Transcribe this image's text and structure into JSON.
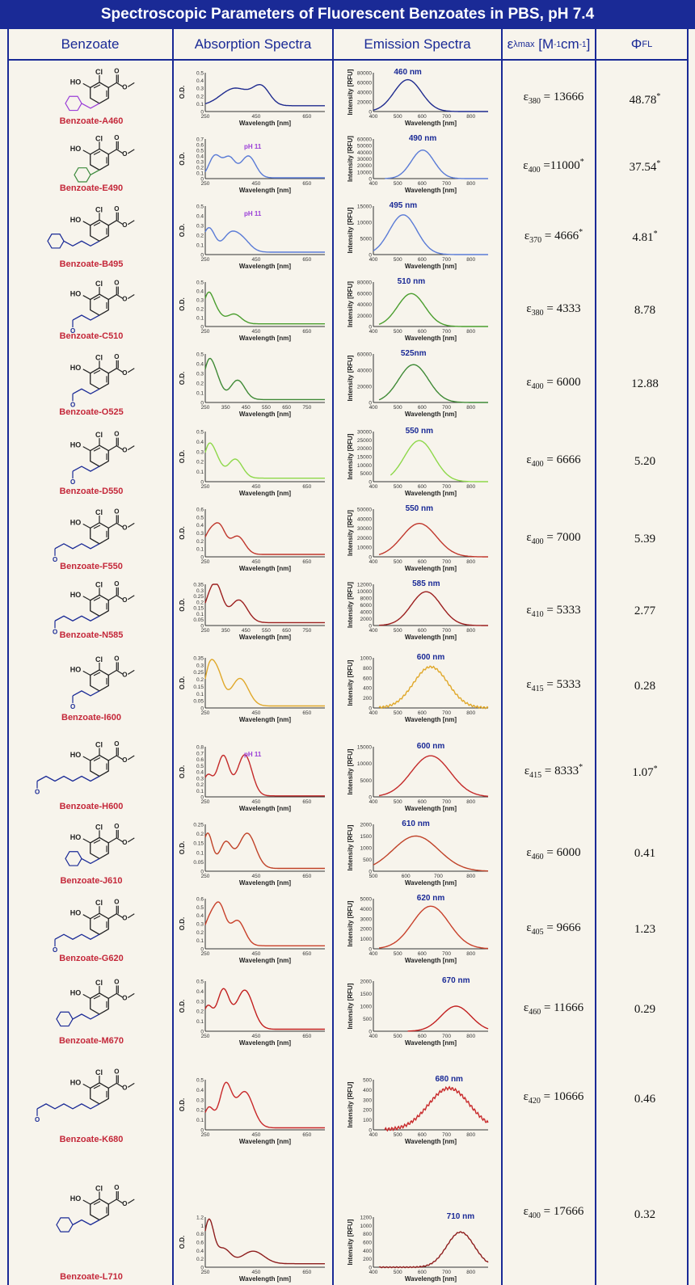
{
  "title": "Spectroscopic Parameters of Fluorescent Benzoates in PBS, pH 7.4",
  "headers": {
    "benzoate": "Benzoate",
    "absorption": "Absorption Spectra",
    "emission": "Emission Spectra",
    "epsilon_sym": "ε",
    "epsilon_sub": "λmax",
    "epsilon_unit": "[M",
    "epsilon_exp1": "-1",
    "epsilon_cm": "cm",
    "epsilon_exp2": "-1",
    "epsilon_close": "]",
    "phi_sym": "Φ",
    "phi_sub": "FL"
  },
  "axis_labels": {
    "od": "O.D.",
    "intensity": "Intensity [RFU]",
    "wavelength": "Wavelength [nm]"
  },
  "colors": {
    "header": "#1a2a96",
    "name": "#c4283a",
    "struct": "#222222",
    "grid_axis": "#333333"
  },
  "compounds": [
    {
      "name": "Benzoate-A460",
      "eps_sub": "380",
      "eps_val": "= 13666",
      "eps_star": false,
      "qy": "48.78",
      "qy_star": true,
      "color": "#1f2b8f",
      "emission_label": "460 nm",
      "abs_note": "",
      "chain": "coumarin",
      "chain_color": "#9b3fd8",
      "abs": {
        "ticks_x": [
          "250",
          "450",
          "650"
        ],
        "ticks_y": [
          "0.5",
          "0.4",
          "0.3",
          "0.2",
          "0.1",
          "0"
        ],
        "peaks": [
          [
            0.25,
            0.45,
            0.12
          ],
          [
            0.47,
            0.45,
            0.07
          ]
        ],
        "base": 0.15
      },
      "em": {
        "ticks_x": [
          "400",
          "500",
          "600",
          "700",
          "800"
        ],
        "ticks_y": [
          "80000",
          "60000",
          "40000",
          "20000",
          "0"
        ],
        "peak": 0.3,
        "width": 0.12,
        "h": 0.82,
        "noise": 0,
        "start": 0
      }
    },
    {
      "name": "Benzoate-E490",
      "eps_sub": "400",
      "eps_val": "=11000",
      "eps_star": true,
      "qy": "37.54",
      "qy_star": true,
      "color": "#5a7bd6",
      "emission_label": "490 nm",
      "abs_note": "pH 11",
      "chain": "benzothiazole",
      "chain_color": "#3d8a3d",
      "abs": {
        "ticks_x": [
          "250",
          "450",
          "650"
        ],
        "ticks_y": [
          "0.7",
          "0.6",
          "0.5",
          "0.4",
          "0.3",
          "0.2",
          "0.1",
          "0"
        ],
        "peaks": [
          [
            0.08,
            0.55,
            0.05
          ],
          [
            0.2,
            0.5,
            0.05
          ],
          [
            0.36,
            0.55,
            0.06
          ]
        ],
        "base": 0.02
      },
      "em": {
        "ticks_x": [
          "400",
          "500",
          "600",
          "700",
          "800"
        ],
        "ticks_y": [
          "60000",
          "50000",
          "40000",
          "30000",
          "20000",
          "10000",
          "0"
        ],
        "peak": 0.43,
        "width": 0.1,
        "h": 0.72,
        "noise": 0,
        "start": 0.1
      }
    },
    {
      "name": "Benzoate-B495",
      "eps_sub": "370",
      "eps_val": "= 4666",
      "eps_star": true,
      "qy": "4.81",
      "qy_star": true,
      "color": "#5a7bd6",
      "emission_label": "495 nm",
      "abs_note": "pH 11",
      "chain": "oxyacetic",
      "chain_color": "#1a2a96",
      "abs": {
        "ticks_x": [
          "250",
          "450",
          "650"
        ],
        "ticks_y": [
          "0.5",
          "0.4",
          "0.3",
          "0.2",
          "0.1",
          "0"
        ],
        "peaks": [
          [
            0.03,
            0.5,
            0.05
          ],
          [
            0.2,
            0.3,
            0.06
          ],
          [
            0.3,
            0.28,
            0.07
          ]
        ],
        "base": 0.05
      },
      "em": {
        "ticks_x": [
          "400",
          "500",
          "600",
          "700",
          "800"
        ],
        "ticks_y": [
          "15000",
          "10000",
          "5000",
          "0"
        ],
        "peak": 0.26,
        "width": 0.12,
        "h": 0.82,
        "noise": 0,
        "start": 0
      }
    },
    {
      "name": "Benzoate-C510",
      "eps_sub": "380",
      "eps_val": "= 4333",
      "eps_star": false,
      "qy": "8.78",
      "qy_star": false,
      "color": "#4a9e2e",
      "emission_label": "510 nm",
      "abs_note": "",
      "chain": "acrylic",
      "chain_color": "#1a2a96",
      "abs": {
        "ticks_x": [
          "250",
          "450",
          "650"
        ],
        "ticks_y": [
          "0.5",
          "0.4",
          "0.3",
          "0.2",
          "0.1",
          "0"
        ],
        "peaks": [
          [
            0.02,
            0.55,
            0.04
          ],
          [
            0.08,
            0.3,
            0.05
          ],
          [
            0.24,
            0.22,
            0.06
          ]
        ],
        "base": 0.06
      },
      "em": {
        "ticks_x": [
          "400",
          "500",
          "600",
          "700",
          "800"
        ],
        "ticks_y": [
          "80000",
          "60000",
          "40000",
          "20000",
          "0"
        ],
        "peak": 0.33,
        "width": 0.12,
        "h": 0.74,
        "noise": 0,
        "start": 0.05
      }
    },
    {
      "name": "Benzoate-O525",
      "eps_sub": "400",
      "eps_val": "= 6000",
      "eps_star": false,
      "qy": "12.88",
      "qy_star": false,
      "color": "#3f8a36",
      "emission_label": "525nm",
      "abs_note": "",
      "chain": "acrylonitrile",
      "chain_color": "#1a2a96",
      "abs": {
        "ticks_x": [
          "250",
          "350",
          "450",
          "550",
          "650",
          "750"
        ],
        "ticks_y": [
          "0.5",
          "0.4",
          "0.3",
          "0.2",
          "0.1",
          "0"
        ],
        "peaks": [
          [
            0.02,
            0.55,
            0.04
          ],
          [
            0.08,
            0.5,
            0.05
          ],
          [
            0.27,
            0.4,
            0.06
          ]
        ],
        "base": 0.06
      },
      "em": {
        "ticks_x": [
          "400",
          "500",
          "600",
          "700",
          "800"
        ],
        "ticks_y": [
          "60000",
          "40000",
          "20000",
          "0"
        ],
        "peak": 0.35,
        "width": 0.13,
        "h": 0.78,
        "noise": 0,
        "start": 0.05
      }
    },
    {
      "name": "Benzoate-D550",
      "eps_sub": "400",
      "eps_val": "= 6666",
      "eps_star": false,
      "qy": "5.20",
      "qy_star": false,
      "color": "#8ed84a",
      "emission_label": "550 nm",
      "abs_note": "",
      "chain": "methylacrylate",
      "chain_color": "#1a2a96",
      "abs": {
        "ticks_x": [
          "250",
          "450",
          "650"
        ],
        "ticks_y": [
          "0.5",
          "0.4",
          "0.3",
          "0.2",
          "0.1",
          "0"
        ],
        "peaks": [
          [
            0.02,
            0.45,
            0.04
          ],
          [
            0.08,
            0.42,
            0.05
          ],
          [
            0.25,
            0.38,
            0.06
          ]
        ],
        "base": 0.07
      },
      "em": {
        "ticks_x": [
          "400",
          "500",
          "600",
          "700",
          "800"
        ],
        "ticks_y": [
          "30000",
          "25000",
          "20000",
          "15000",
          "10000",
          "5000",
          "0"
        ],
        "peak": 0.4,
        "width": 0.13,
        "h": 0.82,
        "noise": 0,
        "start": 0.15
      }
    },
    {
      "name": "Benzoate-F550",
      "eps_sub": "400",
      "eps_val": "= 7000",
      "eps_star": false,
      "qy": "5.39",
      "qy_star": false,
      "color": "#c0372c",
      "emission_label": "550 nm",
      "abs_note": "",
      "chain": "dienoic",
      "chain_color": "#1a2a96",
      "abs": {
        "ticks_x": [
          "250",
          "450",
          "650"
        ],
        "ticks_y": [
          "0.6",
          "0.5",
          "0.4",
          "0.3",
          "0.2",
          "0.1",
          "0"
        ],
        "peaks": [
          [
            0.03,
            0.4,
            0.05
          ],
          [
            0.12,
            0.55,
            0.05
          ],
          [
            0.27,
            0.38,
            0.06
          ]
        ],
        "base": 0.05
      },
      "em": {
        "ticks_x": [
          "400",
          "500",
          "600",
          "700",
          "800"
        ],
        "ticks_y": [
          "50000",
          "40000",
          "30000",
          "20000",
          "10000",
          "0"
        ],
        "peak": 0.4,
        "width": 0.15,
        "h": 0.7,
        "noise": 0,
        "start": 0.05
      }
    },
    {
      "name": "Benzoate-N585",
      "eps_sub": "410",
      "eps_val": "= 5333",
      "eps_star": false,
      "qy": "2.77",
      "qy_star": false,
      "color": "#9c1f1f",
      "emission_label": "585 nm",
      "abs_note": "",
      "chain": "dienenitrile",
      "chain_color": "#1a2a96",
      "abs": {
        "ticks_x": [
          "250",
          "350",
          "450",
          "550",
          "650",
          "750"
        ],
        "ticks_y": [
          "0.35",
          "0.3",
          "0.25",
          "0.2",
          "0.15",
          "0.1",
          "0.05",
          "0"
        ],
        "peaks": [
          [
            0.03,
            0.45,
            0.05
          ],
          [
            0.1,
            0.75,
            0.05
          ],
          [
            0.28,
            0.55,
            0.07
          ]
        ],
        "base": 0.07
      },
      "em": {
        "ticks_x": [
          "400",
          "500",
          "600",
          "700",
          "800"
        ],
        "ticks_y": [
          "12000",
          "10000",
          "8000",
          "6000",
          "4000",
          "2000",
          "0"
        ],
        "peak": 0.46,
        "width": 0.13,
        "h": 0.82,
        "noise": 0,
        "start": 0.05
      }
    },
    {
      "name": "Benzoate-I600",
      "eps_sub": "415",
      "eps_val": "= 5333",
      "eps_star": false,
      "qy": "0.28",
      "qy_star": false,
      "color": "#e0a82a",
      "emission_label": "600 nm",
      "abs_note": "",
      "chain": "butenone",
      "chain_color": "#1a2a96",
      "abs": {
        "ticks_x": [
          "250",
          "450",
          "650"
        ],
        "ticks_y": [
          "0.35",
          "0.3",
          "0.25",
          "0.2",
          "0.15",
          "0.1",
          "0.05",
          "0"
        ],
        "peaks": [
          [
            0.03,
            0.6,
            0.04
          ],
          [
            0.1,
            0.65,
            0.05
          ],
          [
            0.29,
            0.55,
            0.07
          ]
        ],
        "base": 0.04
      },
      "em": {
        "ticks_x": [
          "400",
          "500",
          "600",
          "700",
          "800"
        ],
        "ticks_y": [
          "1000",
          "800",
          "600",
          "400",
          "200",
          "0"
        ],
        "peak": 0.5,
        "width": 0.15,
        "h": 0.82,
        "noise": 0.02,
        "start": 0.05
      }
    },
    {
      "name": "Benzoate-H600",
      "eps_sub": "415",
      "eps_val": "= 8333",
      "eps_star": true,
      "qy": "1.07",
      "qy_star": true,
      "color": "#c42a2a",
      "emission_label": "600 nm",
      "abs_note": "pH 11",
      "chain": "trienoic",
      "chain_color": "#1a2a96",
      "abs": {
        "ticks_x": [
          "250",
          "450",
          "650"
        ],
        "ticks_y": [
          "0.8",
          "0.7",
          "0.6",
          "0.5",
          "0.4",
          "0.3",
          "0.2",
          "0.1",
          "0"
        ],
        "peaks": [
          [
            0.02,
            0.4,
            0.04
          ],
          [
            0.15,
            0.8,
            0.05
          ],
          [
            0.33,
            0.82,
            0.06
          ]
        ],
        "base": 0.02
      },
      "em": {
        "ticks_x": [
          "400",
          "500",
          "600",
          "700",
          "800"
        ],
        "ticks_y": [
          "15000",
          "10000",
          "5000",
          "0"
        ],
        "peak": 0.5,
        "width": 0.17,
        "h": 0.82,
        "noise": 0,
        "start": 0.05
      }
    },
    {
      "name": "Benzoate-J610",
      "eps_sub": "460",
      "eps_val": "= 6000",
      "eps_star": false,
      "qy": "0.41",
      "qy_star": false,
      "color": "#c04228",
      "emission_label": "610 nm",
      "abs_note": "",
      "chain": "imidazolone",
      "chain_color": "#1a2a96",
      "abs": {
        "ticks_x": [
          "250",
          "450",
          "650"
        ],
        "ticks_y": [
          "0.25",
          "0.2",
          "0.15",
          "0.1",
          "0.05",
          "0"
        ],
        "peaks": [
          [
            0.02,
            0.75,
            0.04
          ],
          [
            0.17,
            0.55,
            0.05
          ],
          [
            0.35,
            0.75,
            0.07
          ]
        ],
        "base": 0.06
      },
      "em": {
        "ticks_x": [
          "500",
          "600",
          "700",
          "800"
        ],
        "ticks_y": [
          "2000",
          "1500",
          "1000",
          "500",
          "0"
        ],
        "peak": 0.37,
        "width": 0.2,
        "h": 0.75,
        "noise": 0,
        "start": 0
      }
    },
    {
      "name": "Benzoate-G620",
      "eps_sub": "405",
      "eps_val": "= 9666",
      "eps_star": false,
      "qy": "1.23",
      "qy_star": false,
      "color": "#c8402a",
      "emission_label": "620 nm",
      "abs_note": "",
      "chain": "dienoate",
      "chain_color": "#1a2a96",
      "abs": {
        "ticks_x": [
          "250",
          "450",
          "650"
        ],
        "ticks_y": [
          "0.6",
          "0.5",
          "0.4",
          "0.3",
          "0.2",
          "0.1",
          "0"
        ],
        "peaks": [
          [
            0.03,
            0.45,
            0.05
          ],
          [
            0.12,
            0.75,
            0.05
          ],
          [
            0.27,
            0.5,
            0.06
          ]
        ],
        "base": 0.06
      },
      "em": {
        "ticks_x": [
          "400",
          "500",
          "600",
          "700",
          "800"
        ],
        "ticks_y": [
          "5000",
          "4000",
          "3000",
          "2000",
          "1000",
          "0"
        ],
        "peak": 0.5,
        "width": 0.16,
        "h": 0.85,
        "noise": 0,
        "start": 0.05
      }
    },
    {
      "name": "Benzoate-M670",
      "eps_sub": "460",
      "eps_val": "= 11666",
      "eps_star": false,
      "qy": "0.29",
      "qy_star": false,
      "color": "#c21f1f",
      "emission_label": "670 nm",
      "abs_note": "",
      "chain": "pyridinium",
      "chain_color": "#1a2a96",
      "abs": {
        "ticks_x": [
          "250",
          "450",
          "650"
        ],
        "ticks_y": [
          "0.5",
          "0.4",
          "0.3",
          "0.2",
          "0.1",
          "0"
        ],
        "peaks": [
          [
            0.02,
            0.45,
            0.04
          ],
          [
            0.15,
            0.78,
            0.05
          ],
          [
            0.33,
            0.78,
            0.07
          ]
        ],
        "base": 0.04
      },
      "em": {
        "ticks_x": [
          "400",
          "500",
          "600",
          "700",
          "800"
        ],
        "ticks_y": [
          "2000",
          "1500",
          "1000",
          "500",
          "0"
        ],
        "peak": 0.72,
        "width": 0.13,
        "h": 0.5,
        "noise": 0,
        "start": 0.3
      }
    },
    {
      "name": "Benzoate-K680",
      "eps_sub": "420",
      "eps_val": "= 10666",
      "eps_star": false,
      "qy": "0.46",
      "qy_star": false,
      "color": "#c8282a",
      "emission_label": "680 nm",
      "abs_note": "",
      "chain": "trienoate",
      "chain_color": "#1a2a96",
      "abs": {
        "ticks_x": [
          "250",
          "450",
          "650"
        ],
        "ticks_y": [
          "0.5",
          "0.4",
          "0.3",
          "0.2",
          "0.1",
          "0"
        ],
        "peaks": [
          [
            0.03,
            0.4,
            0.04
          ],
          [
            0.17,
            0.85,
            0.05
          ],
          [
            0.33,
            0.72,
            0.07
          ]
        ],
        "base": 0.04
      },
      "em": {
        "ticks_x": [
          "400",
          "500",
          "600",
          "700",
          "800"
        ],
        "ticks_y": [
          "500",
          "400",
          "300",
          "200",
          "100",
          "0"
        ],
        "peak": 0.66,
        "width": 0.18,
        "h": 0.83,
        "noise": 0.03,
        "start": 0.1
      }
    },
    {
      "name": "Benzoate-L710",
      "eps_sub": "400",
      "eps_val": "= 17666",
      "eps_star": false,
      "qy": "0.32",
      "qy_star": false,
      "color": "#8e1d1d",
      "emission_label": "710 nm",
      "abs_note": "",
      "chain": "chromene",
      "chain_color": "#1a2a96",
      "abs": {
        "ticks_x": [
          "250",
          "450",
          "650"
        ],
        "ticks_y": [
          "1.2",
          "1",
          "0.8",
          "0.6",
          "0.4",
          "0.2",
          "0"
        ],
        "peaks": [
          [
            0.03,
            0.85,
            0.04
          ],
          [
            0.15,
            0.3,
            0.06
          ],
          [
            0.4,
            0.25,
            0.09
          ]
        ],
        "base": 0.07
      },
      "em": {
        "ticks_x": [
          "400",
          "500",
          "600",
          "700",
          "800"
        ],
        "ticks_y": [
          "1200",
          "1000",
          "800",
          "600",
          "400",
          "200",
          "0"
        ],
        "peak": 0.76,
        "width": 0.12,
        "h": 0.7,
        "noise": 0.01,
        "start": 0.05
      }
    }
  ]
}
